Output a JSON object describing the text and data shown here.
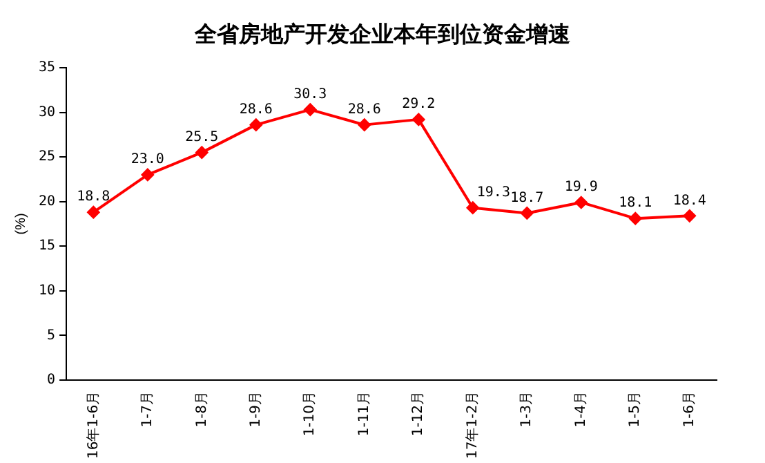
{
  "chart_data": {
    "type": "line",
    "title": "全省房地产开发企业本年到位资金增速",
    "ylabel": "(%)",
    "categories": [
      "16年1-6月",
      "1-7月",
      "1-8月",
      "1-9月",
      "1-10月",
      "1-11月",
      "1-12月",
      "17年1-2月",
      "1-3月",
      "1-4月",
      "1-5月",
      "1-6月"
    ],
    "series": [
      {
        "color": "#ff0000",
        "values": [
          18.8,
          23.0,
          25.5,
          28.6,
          30.3,
          28.6,
          29.2,
          19.3,
          18.7,
          19.9,
          18.1,
          18.4
        ],
        "value_labels": [
          "18.8",
          "23.0",
          "25.5",
          "28.6",
          "30.3",
          "28.6",
          "29.2",
          "19.3",
          "18.7",
          "19.9",
          "18.1",
          "18.4"
        ]
      }
    ],
    "ylim": [
      0,
      35
    ],
    "yticks": [
      0,
      5,
      10,
      15,
      20,
      25,
      30,
      35
    ],
    "grid": false,
    "legend": false,
    "marker": "diamond",
    "line_style": "solid"
  }
}
